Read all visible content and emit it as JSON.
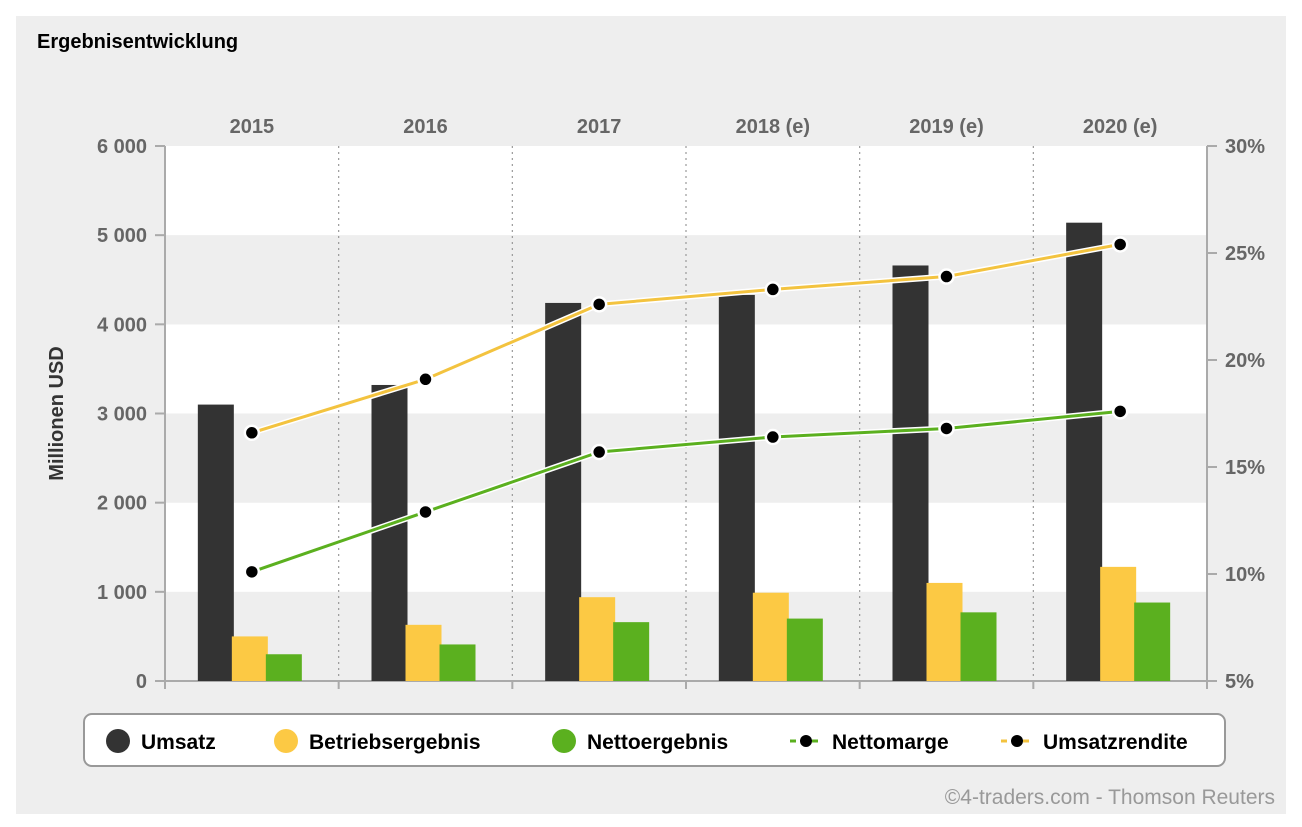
{
  "title": "Ergebnisentwicklung",
  "copyright": "©4-traders.com - Thomson Reuters",
  "colors": {
    "background": "#eeeeee",
    "band_white": "#ffffff",
    "umsatz": "#333333",
    "betriebsergebnis": "#fcc944",
    "nettoergebnis": "#5bb01f",
    "nettomarge_line": "#5bb01f",
    "umsatzrendite_line": "#f3c33f",
    "marker": "#000000",
    "axis_text": "#666666",
    "title_text": "#000000"
  },
  "chart_data": {
    "type": "bar",
    "categories": [
      "2015",
      "2016",
      "2017",
      "2018 (e)",
      "2019 (e)",
      "2020 (e)"
    ],
    "ylabel": "Millionen USD",
    "ylim": [
      0,
      6000
    ],
    "y_ticks": [
      "0",
      "1 000",
      "2 000",
      "3 000",
      "4 000",
      "5 000",
      "6 000"
    ],
    "y2lim": [
      5,
      30
    ],
    "y2_ticks": [
      "5%",
      "10%",
      "15%",
      "20%",
      "25%",
      "30%"
    ],
    "grid": "alternating horizontal bands, dotted vertical separators",
    "legend_position": "bottom",
    "series": [
      {
        "name": "Umsatz",
        "type": "bar",
        "axis": "left",
        "color_key": "umsatz",
        "values": [
          3100,
          3320,
          4240,
          4330,
          4660,
          5140
        ]
      },
      {
        "name": "Betriebsergebnis",
        "type": "bar",
        "axis": "left",
        "color_key": "betriebsergebnis",
        "values": [
          500,
          630,
          940,
          990,
          1100,
          1280
        ]
      },
      {
        "name": "Nettoergebnis",
        "type": "bar",
        "axis": "left",
        "color_key": "nettoergebnis",
        "values": [
          300,
          410,
          660,
          700,
          770,
          880
        ]
      },
      {
        "name": "Nettomarge",
        "type": "line",
        "axis": "right",
        "color_key": "nettomarge_line",
        "values": [
          10.1,
          12.9,
          15.7,
          16.4,
          16.8,
          17.6
        ]
      },
      {
        "name": "Umsatzrendite",
        "type": "line",
        "axis": "right",
        "color_key": "umsatzrendite_line",
        "values": [
          16.6,
          19.1,
          22.6,
          23.3,
          23.9,
          25.4
        ]
      }
    ]
  }
}
